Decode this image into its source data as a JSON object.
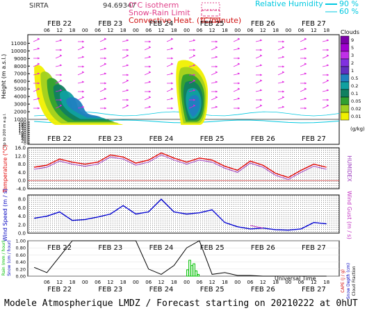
{
  "header": {
    "station": "SIRTA",
    "coords": "94.69347",
    "legend": {
      "isotherm": "0°C isotherm",
      "snow_rain": "Snow-Rain Limit",
      "convective": "Convective Heat. (°C/minute)",
      "rh_label": "Relative Humidity",
      "rh_values": [
        "90 %",
        "60 %"
      ]
    }
  },
  "colors": {
    "isotherm": "#e0408a",
    "snow_rain": "#e0408a",
    "convective": "#d01010",
    "rh": "#00c8e0",
    "wind_arrow": "#e020e0",
    "temperature": "#e00000",
    "humidex": "#a040c0",
    "wind_speed": "#0000d0",
    "wind_gust": "#c030c0",
    "rain": "#00c000",
    "cloud_fraction": "#000000",
    "axis_label_blue": "#0000c0"
  },
  "time_axis": {
    "days": [
      "FEB 22",
      "FEB 23",
      "FEB 24",
      "FEB 25",
      "FEB 26",
      "FEB 27"
    ],
    "hours": [
      "06",
      "12",
      "18",
      "00",
      "06",
      "12",
      "18",
      "00",
      "06",
      "12",
      "18",
      "00",
      "06",
      "12",
      "18",
      "00",
      "06",
      "12",
      "18",
      "00",
      "06",
      "12",
      "18"
    ],
    "xlabel": "Universal Time"
  },
  "chart_data": [
    {
      "type": "heatmap",
      "panel": "clouds",
      "ylabel": "Height (m a.s.l.)",
      "ylabel_lower": "Up to 200 m a.g.l.",
      "yticks": [
        "11000",
        "10000",
        "9000",
        "8000",
        "7000",
        "6000",
        "5000",
        "4000",
        "3000",
        "2000",
        "1000",
        "200",
        "180",
        "160",
        "140",
        "120",
        "100",
        "80",
        "60",
        "40",
        "20",
        "0"
      ],
      "colorbar": {
        "title": "Clouds",
        "unit": "(g/kg)",
        "labels": [
          "9",
          "5",
          "3",
          "2",
          "1",
          "0.5",
          "0.2",
          "0.1",
          "0.05",
          "0.02",
          "0.01"
        ],
        "colors": [
          "#7a00a8",
          "#a000d0",
          "#c030e8",
          "#8030e0",
          "#6030c0",
          "#2080c0",
          "#10a0a0",
          "#108060",
          "#30a030",
          "#a0d020",
          "#f0f000"
        ]
      },
      "cloud_systems": [
        {
          "name": "FEB 22-23 system",
          "x_hours": [
            0,
            42
          ],
          "top_m": 8200,
          "base_m": 900
        },
        {
          "name": "FEB 25 system",
          "x_hours": [
            66,
            82
          ],
          "top_m": 8800,
          "base_m": 150
        }
      ]
    },
    {
      "type": "line",
      "panel": "temperature",
      "ylabel": "Temperature (°C)",
      "ylabel_right": "HUMIDEX",
      "yticks": [
        "16.0",
        "12.0",
        "8.0",
        "4.0",
        "0.0",
        "-4.0"
      ],
      "ylim": [
        -4,
        16
      ],
      "x_hours": [
        0,
        6,
        12,
        18,
        24,
        30,
        36,
        42,
        48,
        54,
        60,
        66,
        72,
        78,
        84,
        90,
        96,
        102,
        108,
        114,
        120,
        126,
        132,
        138
      ],
      "series": [
        {
          "name": "Temperature",
          "values": [
            6.5,
            7.5,
            10.5,
            9.0,
            8.0,
            9.0,
            12.5,
            11.5,
            8.5,
            10.0,
            13.5,
            11.0,
            9.0,
            11.0,
            10.0,
            7.0,
            5.0,
            9.5,
            7.5,
            3.5,
            1.5,
            5.0,
            8.0,
            6.5
          ]
        },
        {
          "name": "HUMIDEX",
          "values": [
            5.5,
            6.5,
            9.5,
            8.0,
            7.0,
            8.0,
            11.5,
            10.5,
            7.5,
            9.0,
            12.5,
            10.0,
            8.0,
            10.0,
            9.0,
            6.0,
            4.0,
            8.5,
            6.5,
            2.5,
            0.5,
            4.0,
            7.0,
            5.5
          ]
        }
      ]
    },
    {
      "type": "line",
      "panel": "wind",
      "ylabel": "Wind Speed (m / s)",
      "ylabel_right": "Wind Gust (m / s)",
      "yticks": [
        "8.0",
        "6.0",
        "4.0",
        "2.0",
        "0.0"
      ],
      "ylim": [
        0,
        9
      ],
      "x_hours": [
        0,
        6,
        12,
        18,
        24,
        30,
        36,
        42,
        48,
        54,
        60,
        66,
        72,
        78,
        84,
        90,
        96,
        102,
        108,
        114,
        120,
        126,
        132,
        138
      ],
      "series": [
        {
          "name": "Wind Speed",
          "values": [
            3.5,
            4.0,
            5.0,
            3.0,
            3.2,
            3.8,
            4.5,
            6.5,
            4.5,
            5.0,
            8.0,
            5.0,
            4.5,
            4.8,
            5.5,
            2.5,
            1.5,
            1.0,
            1.2,
            0.8,
            0.7,
            1.0,
            2.5,
            2.2
          ]
        },
        {
          "name": "Wind Gust",
          "values": [
            null,
            null,
            null,
            null,
            null,
            null,
            null,
            null,
            null,
            null,
            null,
            null,
            null,
            null,
            null,
            null,
            null,
            1.8,
            1.2,
            null,
            null,
            null,
            null,
            null
          ]
        }
      ]
    },
    {
      "type": "bar",
      "panel": "precipitation",
      "ylabel": "Rain (mm / hour)",
      "ylabel2": "Snow (cm / hour)",
      "ylabel_right": "CAPE (J / g)",
      "ylabel_right2": "Snow Depth (cm)",
      "ylabel_right3": "Cloud Fraction",
      "yticks": [
        "1.00",
        "0.80",
        "0.60",
        "0.40",
        "0.20",
        "0.00"
      ],
      "ylim": [
        0,
        1
      ],
      "rain_x_hours": [
        72,
        73,
        74,
        75,
        76,
        77
      ],
      "rain_values": [
        0.18,
        0.45,
        0.3,
        0.35,
        0.15,
        0.05
      ],
      "cloud_fraction": {
        "x_hours": [
          0,
          6,
          12,
          18,
          24,
          30,
          36,
          42,
          48,
          54,
          60,
          66,
          72,
          78,
          84,
          90,
          96,
          102,
          108,
          114,
          120,
          126,
          132,
          138
        ],
        "values": [
          0.25,
          0.1,
          0.55,
          1.0,
          1.0,
          1.0,
          1.0,
          1.0,
          1.0,
          0.2,
          0.05,
          0.3,
          0.8,
          1.0,
          0.05,
          0.1,
          0.02,
          0.02,
          0.0,
          0.0,
          0.0,
          0.0,
          0.0,
          0.0
        ]
      }
    }
  ],
  "footer": "Modele Atmospherique LMDZ / Forecast starting on 20210222 at 0hUT"
}
